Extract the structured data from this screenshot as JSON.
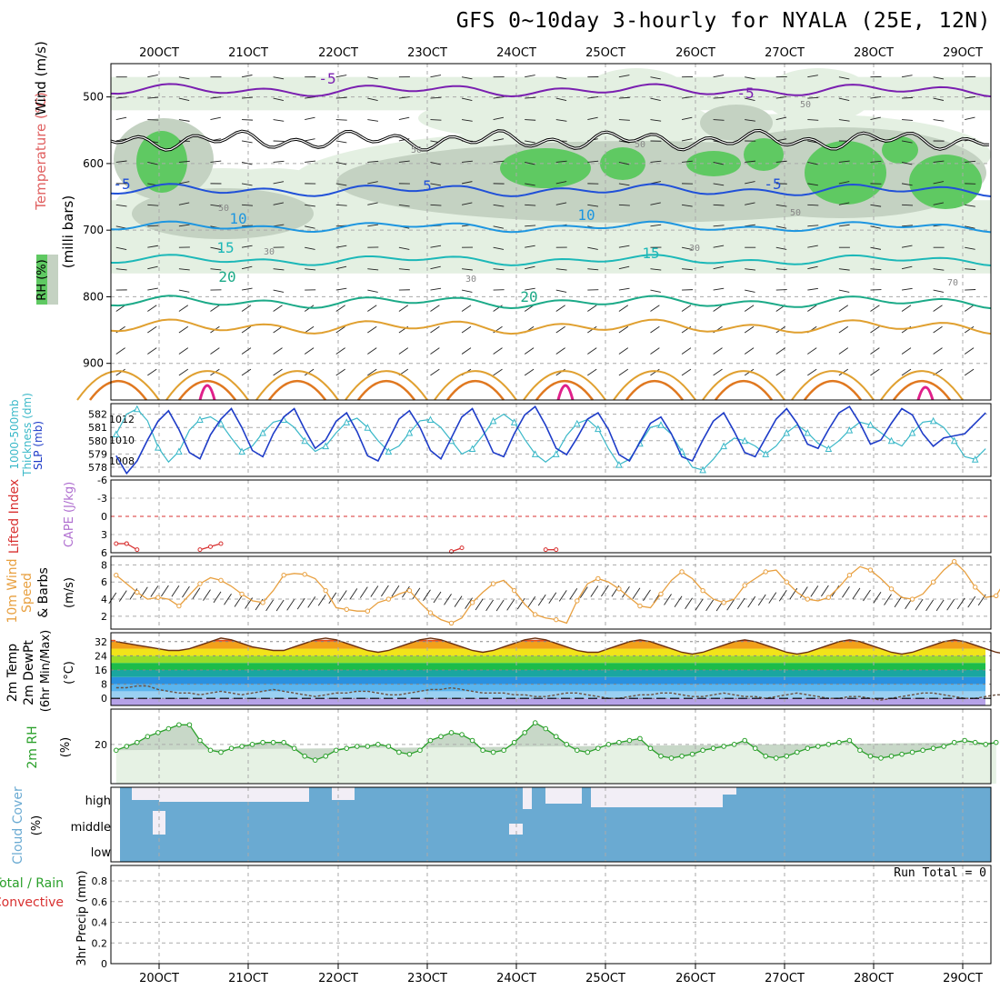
{
  "title": "GFS 0~10day 3-hourly for NYALA (25E, 12N)",
  "date_labels": [
    "20OCT",
    "21OCT",
    "22OCT",
    "23OCT",
    "24OCT",
    "25OCT",
    "26OCT",
    "27OCT",
    "28OCT",
    "29OCT"
  ],
  "colors": {
    "grid": "#aaaaaa",
    "rh_light": "#e4f0e2",
    "rh_mid": "#c4d2c2",
    "rh_green": "#5fc962",
    "temp_m5_upper": "#7a1fb0",
    "temp_m5": "#2050d8",
    "temp_10": "#1e96e0",
    "temp_15": "#1cb8b8",
    "temp_20": "#1caa88",
    "temp_25": "#e0a030",
    "temp_30": "#e07820",
    "temp_35": "#e0208a",
    "thickness": "#3ab8c8",
    "slp": "#1e3cc8",
    "lifted_index": "#d83030",
    "wind_speed": "#e8a040",
    "temp_fill_hot": "#e8501a",
    "rh2m_line": "#2aa02a",
    "cloud": "#6aaad2",
    "cloud_gap": "#f2eef6"
  },
  "chart_data": [
    {
      "type": "heatmap",
      "panel": "upper-air",
      "ylabel_parts": [
        "Temperature (°C)",
        "Wind (m/s)",
        "(milli bars)"
      ],
      "ylabel_colors": [
        "#e06060",
        "#000000",
        "#000000"
      ],
      "rh_legend": "RH (%)",
      "y_ticks": [
        500,
        600,
        700,
        800,
        900
      ],
      "ylim": [
        955,
        450
      ],
      "contour_labels": [
        "-5",
        "-5",
        "-5",
        "5",
        "-5",
        "10",
        "10",
        "15",
        "15",
        "20",
        "20",
        "50",
        "50",
        "50",
        "30",
        "30",
        "30",
        "50",
        "70",
        "50"
      ],
      "isotherms": [
        {
          "name": "-5",
          "level_mb": 490
        },
        {
          "name": "-5",
          "level_mb": 640
        },
        {
          "name": "10",
          "level_mb": 695
        },
        {
          "name": "15",
          "level_mb": 745
        },
        {
          "name": "20",
          "level_mb": 805
        }
      ]
    },
    {
      "type": "line",
      "panel": "thickness-slp",
      "ylabel_thickness": "1000-500mb Thickness (dm)",
      "ylabel_slp": "SLP (mb)",
      "thickness_ticks": [
        578,
        579,
        580,
        581,
        582
      ],
      "slp_ticks": [
        1008,
        1010,
        1012
      ],
      "series": [
        {
          "name": "1000-500mb Thickness (dm)",
          "values": [
            580.5,
            582.0,
            582.4,
            581.5,
            579.5,
            578.4,
            579.2,
            580.8,
            581.6,
            581.8,
            581.3,
            580.2,
            579.2,
            579.6,
            580.6,
            581.4,
            581.6,
            581.0,
            580.0,
            579.2,
            579.6,
            580.6,
            581.4,
            581.7,
            581.0,
            580.0,
            579.2,
            579.6,
            580.6,
            581.5,
            581.6,
            581.0,
            580.0,
            579.0,
            579.4,
            580.4,
            581.5,
            582.0,
            581.4,
            580.1,
            579.0,
            578.4,
            579.0,
            580.4,
            581.3,
            581.6,
            580.9,
            579.4,
            578.2,
            578.6,
            579.8,
            581.0,
            581.2,
            580.5,
            579.2,
            578.0,
            577.8,
            578.6,
            579.6,
            580.2,
            580.0,
            579.6,
            579.0,
            579.6,
            580.6,
            581.2,
            580.6,
            579.8,
            579.4,
            580.0,
            580.8,
            581.4,
            581.2,
            580.6,
            580.0,
            579.6,
            580.6,
            581.4,
            581.5,
            581.0,
            580.0,
            578.8,
            578.6,
            579.4
          ]
        },
        {
          "name": "SLP (mb)",
          "values": [
            1008.5,
            1006.8,
            1008.0,
            1010.0,
            1011.8,
            1012.8,
            1011.0,
            1008.8,
            1008.2,
            1010.5,
            1012.0,
            1013.0,
            1011.2,
            1009.0,
            1008.4,
            1010.6,
            1012.2,
            1013.0,
            1011.0,
            1009.2,
            1010.0,
            1011.8,
            1012.6,
            1010.8,
            1008.5,
            1008.0,
            1010.0,
            1012.0,
            1012.8,
            1011.2,
            1009.0,
            1008.2,
            1010.2,
            1012.2,
            1013.0,
            1011.0,
            1008.8,
            1008.4,
            1010.6,
            1012.4,
            1013.2,
            1011.4,
            1009.2,
            1008.6,
            1010.2,
            1012.0,
            1012.6,
            1011.0,
            1008.6,
            1008.0,
            1009.8,
            1011.6,
            1012.2,
            1010.6,
            1008.4,
            1008.0,
            1010.0,
            1011.8,
            1012.6,
            1010.8,
            1008.8,
            1008.4,
            1010.2,
            1012.0,
            1013.0,
            1011.6,
            1009.6,
            1009.2,
            1011.0,
            1012.6,
            1013.2,
            1011.6,
            1009.6,
            1010.0,
            1011.6,
            1013.0,
            1012.4,
            1010.6,
            1009.4,
            1010.2,
            1010.4,
            1010.6,
            1011.6,
            1012.6
          ]
        }
      ]
    },
    {
      "type": "line",
      "panel": "stability",
      "ylabel_li": "Lifted Index",
      "ylabel_cape": "CAPE (J/kg)",
      "li_ticks": [
        "-6",
        "-3",
        "0",
        "3",
        "6"
      ],
      "ylim": [
        6,
        -6
      ],
      "series": [
        {
          "name": "Lifted Index",
          "segments": [
            {
              "x": [
                0,
                1
              ],
              "values": [
                4.5,
                4.5
              ]
            },
            {
              "x": [
                1,
                2
              ],
              "values": [
                4.5,
                5.5
              ]
            },
            {
              "x": [
                8,
                9,
                10
              ],
              "values": [
                5.5,
                5.0,
                4.5
              ]
            },
            {
              "x": [
                32,
                33
              ],
              "values": [
                5.8,
                5.2
              ]
            },
            {
              "x": [
                41,
                42
              ],
              "values": [
                5.5,
                5.5
              ]
            }
          ]
        }
      ]
    },
    {
      "type": "line",
      "panel": "wind-10m",
      "ylabel": "10m Wind Speed (m/s) & Barbs",
      "ylabel_parts": [
        "10m Wind",
        "Speed",
        "& Barbs",
        "(m/s)"
      ],
      "y_ticks": [
        2,
        4,
        6,
        8
      ],
      "ylim": [
        0.5,
        9
      ],
      "series": [
        {
          "name": "10m Wind Speed (m/s)",
          "values": [
            6.8,
            5.8,
            4.8,
            4.0,
            4.2,
            4.0,
            3.2,
            4.5,
            5.8,
            6.5,
            6.2,
            5.5,
            4.6,
            3.8,
            3.6,
            5.0,
            6.8,
            7.0,
            6.9,
            6.4,
            5.0,
            3.0,
            2.8,
            2.6,
            2.6,
            3.6,
            4.0,
            4.6,
            5.0,
            3.6,
            2.4,
            1.6,
            1.2,
            1.8,
            3.6,
            4.8,
            5.8,
            6.2,
            5.0,
            3.4,
            2.2,
            1.8,
            1.6,
            1.2,
            3.8,
            5.8,
            6.4,
            6.0,
            5.2,
            4.2,
            3.2,
            3.0,
            4.6,
            6.2,
            7.2,
            6.4,
            5.0,
            4.0,
            3.6,
            4.0,
            5.6,
            6.4,
            7.2,
            7.4,
            6.0,
            4.8,
            4.0,
            3.8,
            4.2,
            5.4,
            6.8,
            7.8,
            7.4,
            6.4,
            5.2,
            4.2,
            4.0,
            4.6,
            6.0,
            7.4,
            8.4,
            7.2,
            5.4,
            4.2,
            4.4,
            6.4,
            8.1
          ]
        }
      ]
    },
    {
      "type": "area",
      "panel": "temperature-2m",
      "ylabel_parts": [
        "2m Temp",
        "2m DewPt",
        "(6hr Min/Max)",
        "(°C)"
      ],
      "y_ticks": [
        0,
        8,
        16,
        24,
        32
      ],
      "ylim": [
        -4,
        37
      ],
      "series": [
        {
          "name": "2m Temp",
          "values": [
            32,
            31,
            30,
            29,
            28,
            27,
            27,
            28,
            30,
            32,
            34,
            33,
            31,
            29,
            28,
            27,
            27,
            29,
            31,
            33,
            34,
            33,
            31,
            29,
            27,
            26,
            27,
            29,
            31,
            33,
            34,
            33,
            31,
            29,
            27,
            26,
            27,
            29,
            31,
            33,
            34,
            33,
            31,
            29,
            27,
            26,
            26,
            28,
            30,
            32,
            33,
            32,
            30,
            28,
            26,
            25,
            26,
            28,
            30,
            32,
            33,
            32,
            30,
            28,
            26,
            25,
            26,
            28,
            30,
            32,
            33,
            32,
            30,
            28,
            26,
            25,
            26,
            28,
            30,
            32,
            33,
            32,
            30,
            28,
            26,
            25
          ]
        },
        {
          "name": "2m DewPt",
          "values": [
            6,
            6,
            7,
            7,
            5,
            4,
            3,
            3,
            2,
            3,
            4,
            3,
            2,
            3,
            4,
            5,
            4,
            3,
            2,
            1,
            2,
            3,
            3,
            4,
            4,
            3,
            2,
            2,
            3,
            4,
            5,
            5,
            6,
            5,
            4,
            3,
            3,
            3,
            2,
            2,
            1,
            1,
            2,
            3,
            3,
            2,
            1,
            0,
            0,
            1,
            2,
            2,
            3,
            3,
            2,
            1,
            1,
            2,
            3,
            2,
            1,
            1,
            0,
            1,
            2,
            3,
            2,
            1,
            0,
            0,
            1,
            1,
            0,
            -1,
            0,
            1,
            2,
            3,
            3,
            2,
            1,
            0,
            0,
            1,
            2,
            2
          ]
        }
      ]
    },
    {
      "type": "line",
      "panel": "rh-2m",
      "ylabel": "2m RH",
      "yunit": "(%)",
      "y_ticks": [
        20
      ],
      "ylim": [
        0,
        38
      ],
      "series": [
        {
          "name": "2m RH",
          "values": [
            17,
            19,
            21,
            24,
            26,
            28,
            30,
            30,
            22,
            17,
            16,
            18,
            19,
            20,
            21,
            21,
            21,
            18,
            14,
            12,
            14,
            17,
            18,
            19,
            19,
            20,
            19,
            16,
            15,
            17,
            22,
            24,
            26,
            25,
            22,
            17,
            16,
            17,
            21,
            26,
            31,
            28,
            24,
            20,
            17,
            16,
            18,
            20,
            21,
            22,
            23,
            18,
            14,
            13,
            14,
            15,
            17,
            18,
            19,
            20,
            22,
            18,
            14,
            13,
            14,
            16,
            18,
            19,
            20,
            21,
            22,
            17,
            14,
            13,
            14,
            15,
            16,
            17,
            18,
            19,
            21,
            22,
            21,
            20,
            21
          ]
        }
      ]
    },
    {
      "type": "heatmap",
      "panel": "cloud-cover",
      "ylabel": "Cloud Cover",
      "yunit": "(%)",
      "levels": [
        "high",
        "middle",
        "low"
      ]
    },
    {
      "type": "bar",
      "panel": "precip",
      "ylabel": "3hr Precip (mm)",
      "legend": [
        "Total / Rain",
        "Convective"
      ],
      "legend_colors": [
        "#2aa02a",
        "#d83030"
      ],
      "y_ticks": [
        "0",
        "0.2",
        "0.4",
        "0.6",
        "0.8"
      ],
      "ylim": [
        0,
        0.95
      ],
      "values": [],
      "annotation": "Run Total = 0"
    }
  ]
}
